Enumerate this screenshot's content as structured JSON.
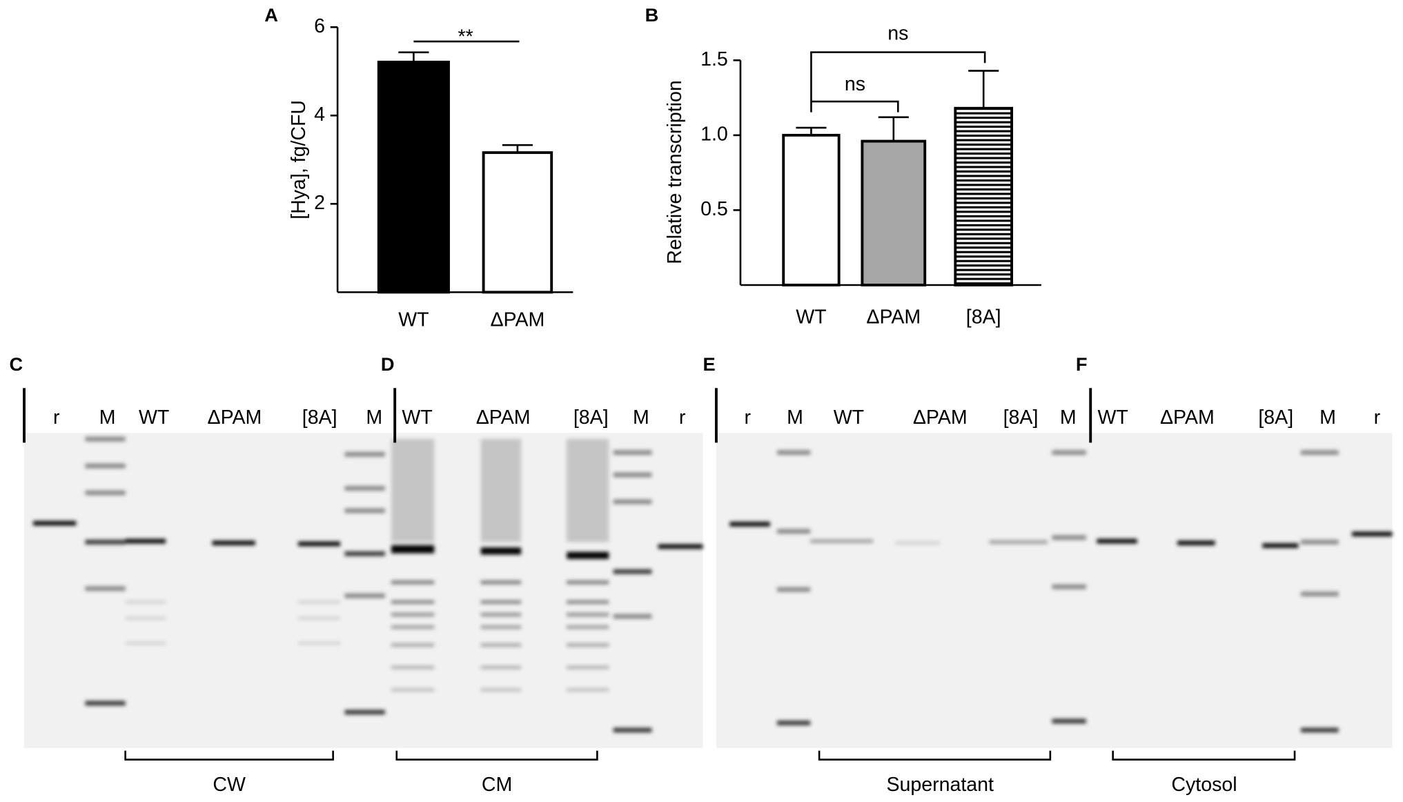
{
  "chart_data": [
    {
      "type": "bar",
      "panel": "A",
      "y_label": "[Hya], fg/CFU",
      "categories": [
        "WT",
        "ΔPAM"
      ],
      "values": [
        5.21,
        3.16
      ],
      "errors": [
        0.22,
        0.17
      ],
      "colors": [
        "#000000",
        "#ffffff"
      ],
      "ylim": [
        0,
        6
      ],
      "yticks": [
        2,
        4,
        6
      ],
      "annotations": [
        "**"
      ]
    },
    {
      "type": "bar",
      "panel": "B",
      "y_label": "Relative transcription",
      "categories": [
        "WT",
        "ΔPAM",
        "[8A]"
      ],
      "values": [
        1.0,
        0.96,
        1.18
      ],
      "errors": [
        0.05,
        0.16,
        0.25
      ],
      "colors": [
        "#ffffff",
        "#a6a6a6",
        "horizontal-stripes"
      ],
      "ylim": [
        0,
        1.5
      ],
      "yticks": [
        0.5,
        {
          "value": 1,
          "label": "1.0"
        },
        1.5
      ],
      "annotations": [
        "ns",
        "ns"
      ]
    }
  ],
  "gels": [
    {
      "panel": "C",
      "lanes": [
        "r",
        "M",
        "WT",
        "ΔPAM",
        "[8A]",
        "M"
      ],
      "fraction": "CW"
    },
    {
      "panel": "D",
      "lanes": [
        "WT",
        "ΔPAM",
        "[8A]",
        "M",
        "r"
      ],
      "fraction": "CM"
    },
    {
      "panel": "E",
      "lanes": [
        "r",
        "M",
        "WT",
        "ΔPAM",
        "[8A]",
        "M"
      ],
      "fraction": "Supernatant"
    },
    {
      "panel": "F",
      "lanes": [
        "WT",
        "ΔPAM",
        "[8A]",
        "M",
        "r"
      ],
      "fraction": "Cytosol"
    }
  ]
}
